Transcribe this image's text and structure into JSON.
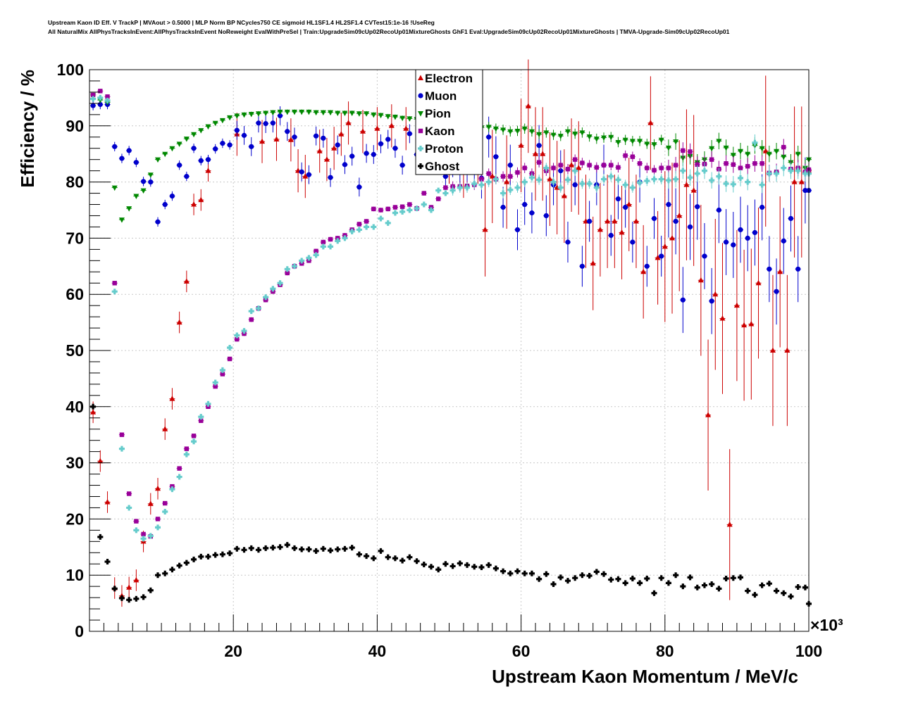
{
  "header": {
    "line1": "Upstream Kaon ID Eff. V TrackP | MVAout > 0.5000 | MLP Norm BP NCycles750 CE sigmoid HL1SF1.4 HL2SF1.4 CVTest15:1e-16 !UseReg",
    "line2": "All NaturalMix AllPhysTracksInEvent:AllPhysTracksInEvent NoReweight EvalWithPreSel | Train:UpgradeSim09cUp02RecoUp01MixtureGhosts GhF1 Eval:UpgradeSim09cUp02RecoUp01MixtureGhosts | TMVA-Upgrade-Sim09cUp02RecoUp01"
  },
  "chart_data": {
    "type": "scatter",
    "xlabel": "Upstream Kaon Momentum / MeV/c",
    "ylabel": "Efficiency / %",
    "x_multiplier": "×10³",
    "xlim": [
      0,
      100
    ],
    "ylim": [
      0,
      100
    ],
    "x_ticks": [
      20,
      40,
      60,
      80,
      100
    ],
    "y_ticks": [
      0,
      10,
      20,
      30,
      40,
      50,
      60,
      70,
      80,
      90,
      100
    ],
    "grid": true,
    "legend_position": "top-center",
    "series": [
      {
        "name": "Electron",
        "color": "#cc0000",
        "marker": "triangle-up",
        "x": [
          0.5,
          1.5,
          2.5,
          3.5,
          4.5,
          5.5,
          6.5,
          7.5,
          8.5,
          9.5,
          10.5,
          11.5,
          12.5,
          13.5,
          14.5,
          15.5,
          16.5,
          20.5,
          24,
          26,
          28,
          29,
          30,
          32,
          33,
          34,
          35,
          36,
          38,
          40,
          42,
          44,
          46,
          48,
          50,
          52,
          54,
          55,
          56,
          58,
          60,
          61,
          62,
          63,
          64,
          65,
          66,
          67,
          68,
          69,
          70,
          71,
          72,
          73,
          74,
          75,
          76,
          77,
          78,
          79,
          80,
          81,
          82,
          83,
          84,
          85,
          86,
          87,
          88,
          89,
          90,
          91,
          92,
          93,
          94,
          95,
          96,
          97,
          98,
          99,
          100
        ],
        "y": [
          39,
          30.3,
          23,
          7.7,
          6.3,
          7.8,
          9.1,
          16,
          22.7,
          25.4,
          36,
          41.4,
          55,
          62.3,
          76,
          76.8,
          82,
          88.5,
          87.2,
          87.6,
          87.5,
          82,
          81,
          85.5,
          84,
          86,
          88.5,
          90.5,
          89,
          89.5,
          90,
          89.5,
          91,
          86.5,
          88,
          85.5,
          88,
          71.5,
          81,
          80,
          86.5,
          93.5,
          85,
          85,
          80.5,
          79,
          77.5,
          83,
          82.5,
          73,
          65.5,
          71.5,
          73,
          73,
          71,
          76,
          73,
          64,
          90.5,
          66.5,
          68.5,
          70,
          74,
          79.5,
          78.5,
          62.5,
          38.5,
          60,
          55.7,
          19,
          58,
          54.5,
          54.7,
          62,
          85.5,
          50,
          64,
          50,
          80,
          80,
          82
        ]
      },
      {
        "name": "Muon",
        "color": "#0000cc",
        "marker": "circle",
        "x": [
          0.5,
          1.5,
          2.5,
          3.5,
          4.5,
          5.5,
          6.5,
          7.5,
          8.5,
          9.5,
          10.5,
          11.5,
          12.5,
          13.5,
          14.5,
          15.5,
          16.5,
          17.5,
          18.5,
          19.5,
          20.5,
          21.5,
          22.5,
          23.5,
          24.5,
          25.5,
          26.5,
          27.5,
          28.5,
          29.5,
          30.5,
          31.5,
          32.5,
          33.5,
          34.5,
          35.5,
          36.5,
          37.5,
          38.5,
          39.5,
          40.5,
          41.5,
          42.5,
          43.5,
          44.5,
          45.5,
          46.5,
          47.5,
          48.5,
          49.5,
          50.5,
          51.5,
          52.5,
          53.5,
          54.5,
          55.5,
          56.5,
          57.5,
          58.5,
          59.5,
          60.5,
          61.5,
          62.5,
          63.5,
          64.5,
          65.5,
          66.5,
          67.5,
          68.5,
          69.5,
          70.5,
          71.5,
          72.5,
          73.5,
          74.5,
          75.5,
          76.5,
          77.5,
          78.5,
          79.5,
          80.5,
          81.5,
          82.5,
          83.5,
          84.5,
          85.5,
          86.5,
          87.5,
          88.5,
          89.5,
          90.5,
          91.5,
          92.5,
          93.5,
          94.5,
          95.5,
          96.5,
          97.5,
          98.5,
          99.5,
          100
        ],
        "y": [
          93.6,
          93.8,
          93.8,
          86.3,
          84.2,
          85.6,
          83.5,
          80.1,
          80,
          72.9,
          76,
          77.5,
          83,
          81,
          86,
          83.8,
          84,
          85.9,
          86.9,
          86.6,
          89.2,
          88.3,
          86.3,
          90.5,
          90.4,
          90.5,
          91.8,
          89,
          88,
          81.8,
          81.3,
          88.2,
          87.8,
          80.8,
          86.6,
          83.1,
          84.6,
          79.1,
          85.1,
          84.9,
          86.8,
          87.6,
          86,
          83,
          88.6,
          84.9,
          87.7,
          83.5,
          85.8,
          81,
          84.5,
          82.5,
          83,
          84,
          80.7,
          88,
          84.5,
          75.5,
          83,
          71.5,
          76,
          74.5,
          86.5,
          74,
          79.5,
          82,
          69.3,
          79.5,
          65,
          73,
          79.5,
          83,
          70.5,
          77,
          75.5,
          69.3,
          80,
          65,
          73.5,
          66.8,
          76,
          73,
          59,
          72,
          75.6,
          66.8,
          58.8,
          75,
          69.3,
          68.8,
          71.5,
          70,
          71,
          75.5,
          64.5,
          60.5,
          69.5,
          73.5,
          64.5,
          78.5,
          78.5
        ]
      },
      {
        "name": "Pion",
        "color": "#008800",
        "marker": "triangle-down",
        "x": [
          0.5,
          1.5,
          2.5,
          3.5,
          4.5,
          5.5,
          6.5,
          7.5,
          8.5,
          9.5,
          10.5,
          11.5,
          12.5,
          13.5,
          14.5,
          15.5,
          16.5,
          17.5,
          18.5,
          19.5,
          20.5,
          21.5,
          22.5,
          23.5,
          24.5,
          25.5,
          26.5,
          27.5,
          28.5,
          29.5,
          30.5,
          31.5,
          32.5,
          33.5,
          34.5,
          35.5,
          36.5,
          37.5,
          38.5,
          39.5,
          40.5,
          41.5,
          42.5,
          43.5,
          44.5,
          45.5,
          46.5,
          47.5,
          48.5,
          49.5,
          50.5,
          51.5,
          52.5,
          53.5,
          54.5,
          55.5,
          56.5,
          57.5,
          58.5,
          59.5,
          60.5,
          61.5,
          62.5,
          63.5,
          64.5,
          65.5,
          66.5,
          67.5,
          68.5,
          69.5,
          70.5,
          71.5,
          72.5,
          73.5,
          74.5,
          75.5,
          76.5,
          77.5,
          78.5,
          79.5,
          80.5,
          81.5,
          82.5,
          83.5,
          84.5,
          85.5,
          86.5,
          87.5,
          88.5,
          89.5,
          90.5,
          91.5,
          92.5,
          93.5,
          94.5,
          95.5,
          96.5,
          97.5,
          98.5,
          99.5,
          100
        ],
        "y": [
          95.5,
          94.6,
          94.2,
          79,
          73.3,
          75.3,
          77.5,
          78.5,
          81.3,
          84,
          85,
          86,
          86.8,
          87.7,
          88.5,
          89.2,
          89.9,
          90.5,
          91,
          91.5,
          91.8,
          92,
          92.1,
          92.2,
          92.3,
          92.4,
          92.5,
          92.5,
          92.5,
          92.5,
          92.5,
          92.4,
          92.4,
          92.4,
          92.3,
          92.3,
          92.3,
          92.2,
          92.2,
          92,
          91.9,
          91.7,
          91.6,
          91.4,
          91.3,
          91.2,
          91,
          90.8,
          90.7,
          90.6,
          90.5,
          90.3,
          90.1,
          89.9,
          89.7,
          89.8,
          89.5,
          89.3,
          89,
          89.1,
          89.5,
          89,
          88.5,
          88.8,
          88.4,
          88.2,
          89,
          88.6,
          88.8,
          88.1,
          87.7,
          87.9,
          88,
          87.1,
          87.5,
          87.3,
          87.3,
          86.8,
          86.7,
          87.5,
          86.1,
          87.2,
          84.3,
          84.6,
          83.5,
          84,
          86,
          87.3,
          86.1,
          84.8,
          85.5,
          85,
          86.5,
          86,
          85,
          85.5,
          84.5,
          83.5,
          85,
          82.5,
          84
        ]
      },
      {
        "name": "Kaon",
        "color": "#990099",
        "marker": "square",
        "x": [
          0.5,
          1.5,
          2.5,
          3.5,
          4.5,
          5.5,
          6.5,
          7.5,
          8.5,
          9.5,
          10.5,
          11.5,
          12.5,
          13.5,
          14.5,
          15.5,
          16.5,
          17.5,
          18.5,
          19.5,
          20.5,
          21.5,
          22.5,
          23.5,
          24.5,
          25.5,
          26.5,
          27.5,
          28.5,
          29.5,
          30.5,
          31.5,
          32.5,
          33.5,
          34.5,
          35.5,
          36.5,
          37.5,
          38.5,
          39.5,
          40.5,
          41.5,
          42.5,
          43.5,
          44.5,
          45.5,
          46.5,
          47.5,
          48.5,
          49.5,
          50.5,
          51.5,
          52.5,
          53.5,
          54.5,
          55.5,
          56.5,
          57.5,
          58.5,
          59.5,
          60.5,
          61.5,
          62.5,
          63.5,
          64.5,
          65.5,
          66.5,
          67.5,
          68.5,
          69.5,
          70.5,
          71.5,
          72.5,
          73.5,
          74.5,
          75.5,
          76.5,
          77.5,
          78.5,
          79.5,
          80.5,
          81.5,
          82.5,
          83.5,
          84.5,
          85.5,
          86.5,
          87.5,
          88.5,
          89.5,
          90.5,
          91.5,
          92.5,
          93.5,
          94.5,
          95.5,
          96.5,
          97.5,
          98.5,
          99.5,
          100
        ],
        "y": [
          95.5,
          96.2,
          95.2,
          62,
          35,
          24.5,
          19.6,
          17.3,
          16.9,
          20,
          22.8,
          25.8,
          29,
          32.5,
          34.8,
          37.5,
          40,
          43.6,
          45.8,
          48.5,
          52,
          53,
          55.5,
          57.5,
          59,
          60.5,
          61.7,
          63.8,
          65,
          65.5,
          66,
          67.7,
          69.3,
          69.8,
          70,
          70.5,
          71.5,
          72.5,
          73,
          75.2,
          75,
          75.2,
          75.5,
          75.6,
          76,
          75.3,
          78,
          75.5,
          77,
          79,
          79.2,
          79.2,
          79.3,
          79.5,
          80.5,
          81.5,
          80.5,
          81,
          81,
          81.7,
          82.5,
          81.5,
          83.5,
          82,
          82.5,
          83,
          82.3,
          84,
          83.4,
          83,
          82.6,
          83,
          83,
          82.6,
          84.7,
          84.5,
          83.3,
          82.5,
          82.1,
          82.5,
          82.5,
          83,
          85.6,
          85.4,
          83.1,
          83.2,
          84,
          82.3,
          83.3,
          83.1,
          82.5,
          82.8,
          83.3,
          83.3,
          81.6,
          81.8,
          86.2,
          82.3,
          82.5,
          81.8,
          82.2
        ]
      },
      {
        "name": "Proton",
        "color": "#66cccc",
        "marker": "cross",
        "x": [
          0.5,
          1.5,
          2.5,
          3.5,
          4.5,
          5.5,
          6.5,
          7.5,
          8.5,
          9.5,
          10.5,
          11.5,
          12.5,
          13.5,
          14.5,
          15.5,
          16.5,
          17.5,
          18.5,
          19.5,
          20.5,
          21.5,
          22.5,
          23.5,
          24.5,
          25.5,
          26.5,
          27.5,
          28.5,
          29.5,
          30.5,
          31.5,
          32.5,
          33.5,
          34.5,
          35.5,
          36.5,
          37.5,
          38.5,
          39.5,
          40.5,
          41.5,
          42.5,
          43.5,
          44.5,
          45.5,
          46.5,
          47.5,
          48.5,
          49.5,
          50.5,
          51.5,
          52.5,
          53.5,
          54.5,
          55.5,
          56.5,
          57.5,
          58.5,
          59.5,
          60.5,
          61.5,
          62.5,
          63.5,
          64.5,
          65.5,
          66.5,
          67.5,
          68.5,
          69.5,
          70.5,
          71.5,
          72.5,
          73.5,
          74.5,
          75.5,
          76.5,
          77.5,
          78.5,
          79.5,
          80.5,
          81.5,
          82.5,
          83.5,
          84.5,
          85.5,
          86.5,
          87.5,
          88.5,
          89.5,
          90.5,
          91.5,
          92.5,
          93.5,
          94.5,
          95.5,
          96.5,
          97.5,
          98.5,
          99.5,
          100
        ],
        "y": [
          94.8,
          95,
          94.5,
          60.5,
          32.5,
          22,
          18,
          16.5,
          17,
          18.5,
          21.3,
          25.3,
          27.5,
          31.5,
          33.8,
          38.2,
          40.5,
          44.3,
          46.5,
          50.5,
          52.7,
          53.5,
          57,
          57.5,
          59.5,
          61,
          62,
          64.5,
          65,
          66,
          66.5,
          67,
          68.5,
          68.5,
          69.5,
          70,
          71.2,
          71.5,
          72,
          72,
          73.5,
          72.7,
          74.5,
          74.7,
          75,
          75.3,
          76,
          75,
          78.5,
          78,
          78.5,
          79,
          79,
          79.7,
          79.5,
          80,
          80.5,
          78,
          78.6,
          79,
          80,
          80.8,
          80.4,
          82.5,
          80,
          79,
          80.4,
          82,
          79.7,
          79.7,
          79,
          80.5,
          81,
          80.4,
          79.5,
          79,
          79.9,
          80.2,
          80.5,
          80.5,
          80.3,
          80.5,
          82,
          80.8,
          81.5,
          82,
          80.3,
          81,
          79.7,
          79.6,
          80.7,
          80,
          87,
          79.5,
          81.5,
          81.5,
          82.5,
          82,
          82,
          81.5,
          81.5
        ]
      },
      {
        "name": "Ghost",
        "color": "#000000",
        "marker": "cross",
        "x": [
          0.5,
          1.5,
          2.5,
          3.5,
          4.5,
          5.5,
          6.5,
          7.5,
          8.5,
          9.5,
          10.5,
          11.5,
          12.5,
          13.5,
          14.5,
          15.5,
          16.5,
          17.5,
          18.5,
          19.5,
          20.5,
          21.5,
          22.5,
          23.5,
          24.5,
          25.5,
          26.5,
          27.5,
          28.5,
          29.5,
          30.5,
          31.5,
          32.5,
          33.5,
          34.5,
          35.5,
          36.5,
          37.5,
          38.5,
          39.5,
          40.5,
          41.5,
          42.5,
          43.5,
          44.5,
          45.5,
          46.5,
          47.5,
          48.5,
          49.5,
          50.5,
          51.5,
          52.5,
          53.5,
          54.5,
          55.5,
          56.5,
          57.5,
          58.5,
          59.5,
          60.5,
          61.5,
          62.5,
          63.5,
          64.5,
          65.5,
          66.5,
          67.5,
          68.5,
          69.5,
          70.5,
          71.5,
          72.5,
          73.5,
          74.5,
          75.5,
          76.5,
          77.5,
          78.5,
          79.5,
          80.5,
          81.5,
          82.5,
          83.5,
          84.5,
          85.5,
          86.5,
          87.5,
          88.5,
          89.5,
          90.5,
          91.5,
          92.5,
          93.5,
          94.5,
          95.5,
          96.5,
          97.5,
          98.5,
          99.5,
          100
        ],
        "y": [
          40,
          16.8,
          12.4,
          7.6,
          5.9,
          5.6,
          5.8,
          6.1,
          7.3,
          10,
          10.3,
          11,
          11.7,
          12.2,
          12.8,
          13.3,
          13.3,
          13.6,
          13.7,
          13.9,
          14.7,
          14.5,
          14.8,
          14.5,
          14.8,
          14.9,
          15,
          15.4,
          14.8,
          14.6,
          14.6,
          14.3,
          14.7,
          14.4,
          14.6,
          14.7,
          14.9,
          13.7,
          13.4,
          13,
          14.3,
          13.2,
          13,
          12.6,
          13.2,
          12.5,
          11.9,
          11.5,
          11,
          12,
          11.6,
          12.1,
          11.8,
          11.5,
          11.4,
          11.8,
          11.2,
          10.7,
          10.3,
          10.7,
          10.3,
          10.3,
          9.3,
          10.2,
          8.4,
          9.6,
          9,
          9.5,
          10,
          9.9,
          10.6,
          10.2,
          9.2,
          9.3,
          8.6,
          9.4,
          8.6,
          9.4,
          6.8,
          9.5,
          8.6,
          10,
          8,
          9.6,
          7.8,
          8.2,
          8.4,
          7.6,
          9.4,
          9.5,
          9.6,
          7.2,
          6.5,
          8.2,
          8.5,
          7.2,
          6.8,
          6.2,
          7.9,
          7.8,
          4.9
        ]
      }
    ]
  }
}
